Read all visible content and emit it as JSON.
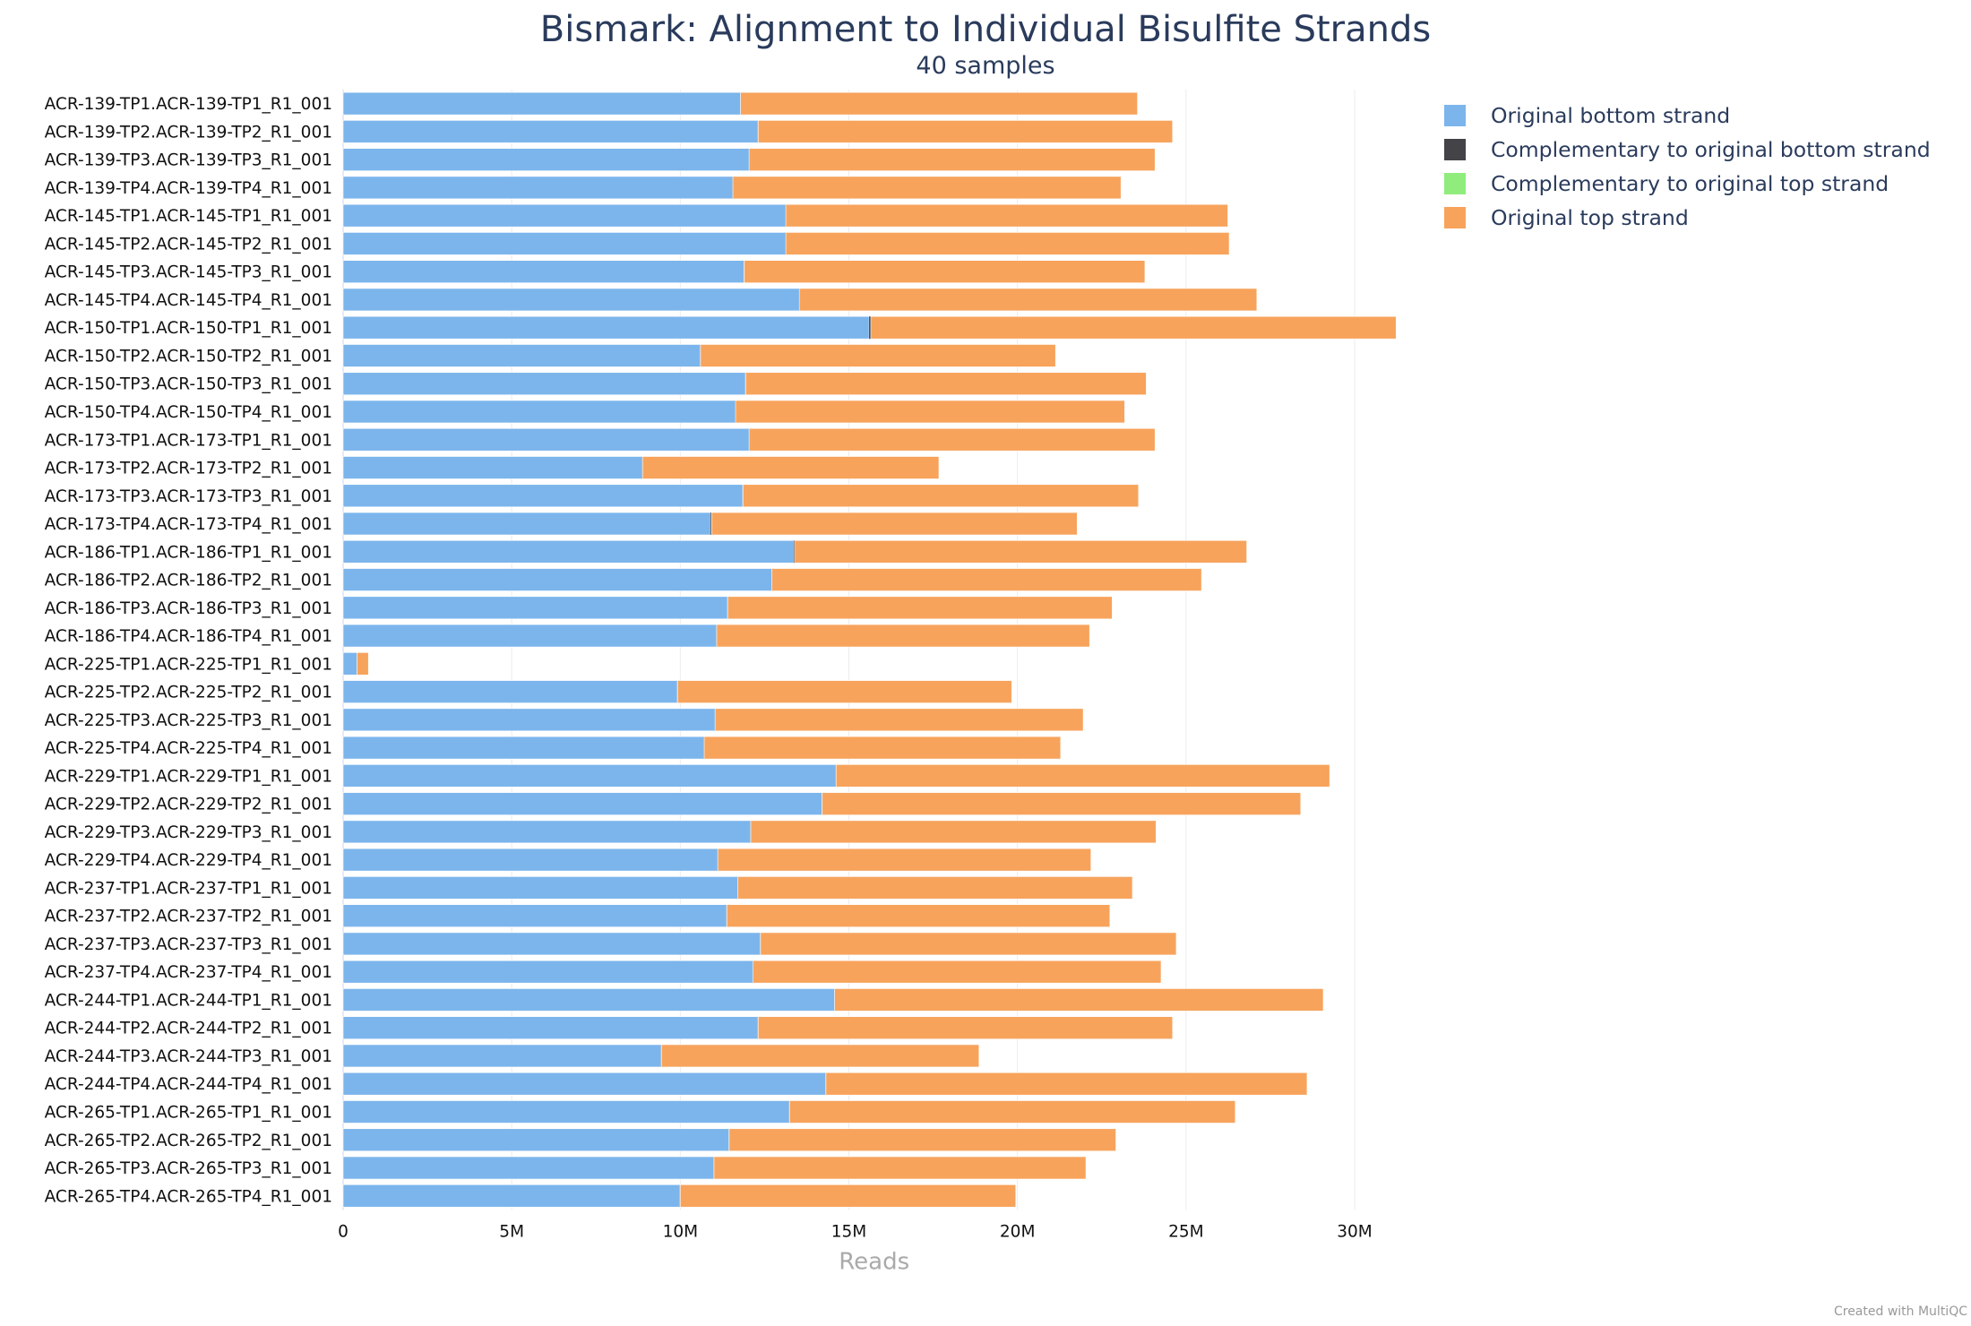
{
  "chart_data": {
    "type": "bar",
    "orientation": "horizontal",
    "stacked": true,
    "title": "Bismark: Alignment to Individual Bisulfite Strands",
    "subtitle": "40 samples",
    "xlabel": "Reads",
    "ylabel": "",
    "xlim": [
      0,
      31500000.0
    ],
    "x_ticks": [
      "0",
      "5M",
      "10M",
      "15M",
      "20M",
      "25M",
      "30M"
    ],
    "x_tick_values": [
      0,
      5000000.0,
      10000000.0,
      15000000.0,
      20000000.0,
      25000000.0,
      30000000.0
    ],
    "grid": true,
    "legend_position": "right",
    "categories": [
      "ACR-139-TP1.ACR-139-TP1_R1_001",
      "ACR-139-TP2.ACR-139-TP2_R1_001",
      "ACR-139-TP3.ACR-139-TP3_R1_001",
      "ACR-139-TP4.ACR-139-TP4_R1_001",
      "ACR-145-TP1.ACR-145-TP1_R1_001",
      "ACR-145-TP2.ACR-145-TP2_R1_001",
      "ACR-145-TP3.ACR-145-TP3_R1_001",
      "ACR-145-TP4.ACR-145-TP4_R1_001",
      "ACR-150-TP1.ACR-150-TP1_R1_001",
      "ACR-150-TP2.ACR-150-TP2_R1_001",
      "ACR-150-TP3.ACR-150-TP3_R1_001",
      "ACR-150-TP4.ACR-150-TP4_R1_001",
      "ACR-173-TP1.ACR-173-TP1_R1_001",
      "ACR-173-TP2.ACR-173-TP2_R1_001",
      "ACR-173-TP3.ACR-173-TP3_R1_001",
      "ACR-173-TP4.ACR-173-TP4_R1_001",
      "ACR-186-TP1.ACR-186-TP1_R1_001",
      "ACR-186-TP2.ACR-186-TP2_R1_001",
      "ACR-186-TP3.ACR-186-TP3_R1_001",
      "ACR-186-TP4.ACR-186-TP4_R1_001",
      "ACR-225-TP1.ACR-225-TP1_R1_001",
      "ACR-225-TP2.ACR-225-TP2_R1_001",
      "ACR-225-TP3.ACR-225-TP3_R1_001",
      "ACR-225-TP4.ACR-225-TP4_R1_001",
      "ACR-229-TP1.ACR-229-TP1_R1_001",
      "ACR-229-TP2.ACR-229-TP2_R1_001",
      "ACR-229-TP3.ACR-229-TP3_R1_001",
      "ACR-229-TP4.ACR-229-TP4_R1_001",
      "ACR-237-TP1.ACR-237-TP1_R1_001",
      "ACR-237-TP2.ACR-237-TP2_R1_001",
      "ACR-237-TP3.ACR-237-TP3_R1_001",
      "ACR-237-TP4.ACR-237-TP4_R1_001",
      "ACR-244-TP1.ACR-244-TP1_R1_001",
      "ACR-244-TP2.ACR-244-TP2_R1_001",
      "ACR-244-TP3.ACR-244-TP3_R1_001",
      "ACR-244-TP4.ACR-244-TP4_R1_001",
      "ACR-265-TP1.ACR-265-TP1_R1_001",
      "ACR-265-TP2.ACR-265-TP2_R1_001",
      "ACR-265-TP3.ACR-265-TP3_R1_001",
      "ACR-265-TP4.ACR-265-TP4_R1_001"
    ],
    "series": [
      {
        "name": "Original bottom strand",
        "color": "#7cb5ec",
        "values": [
          11780000.0,
          12300000.0,
          12040000.0,
          11550000.0,
          13120000.0,
          13120000.0,
          11890000.0,
          13530000.0,
          15600000.0,
          10590000.0,
          11930000.0,
          11630000.0,
          12040000.0,
          8870000.0,
          11850000.0,
          10900000.0,
          13360000.0,
          12710000.0,
          11400000.0,
          11070000.0,
          410000.0,
          9910000.0,
          11030000.0,
          10700000.0,
          14610000.0,
          14200000.0,
          12080000.0,
          11110000.0,
          11700000.0,
          11370000.0,
          12370000.0,
          12150000.0,
          14570000.0,
          12300000.0,
          9430000.0,
          14310000.0,
          13230000.0,
          11440000.0,
          10990000.0,
          9990000.0
        ]
      },
      {
        "name": "Complementary to original bottom strand",
        "color": "#434348",
        "values": [
          10000.0,
          10000.0,
          10000.0,
          10000.0,
          10000.0,
          10000.0,
          10000.0,
          10000.0,
          50000.0,
          10000.0,
          10000.0,
          10000.0,
          10000.0,
          10000.0,
          10000.0,
          30000.0,
          30000.0,
          10000.0,
          10000.0,
          10000.0,
          0,
          10000.0,
          10000.0,
          10000.0,
          10000.0,
          10000.0,
          10000.0,
          10000.0,
          10000.0,
          10000.0,
          10000.0,
          10000.0,
          10000.0,
          10000.0,
          10000.0,
          10000.0,
          10000.0,
          10000.0,
          10000.0,
          10000.0
        ]
      },
      {
        "name": "Complementary to original top strand",
        "color": "#90ed7d",
        "values": [
          0,
          0,
          0,
          0,
          0,
          0,
          0,
          0,
          0,
          0,
          0,
          0,
          0,
          0,
          0,
          0,
          0,
          0,
          0,
          0,
          0,
          0,
          0,
          0,
          0,
          0,
          0,
          0,
          0,
          0,
          0,
          0,
          0,
          0,
          0,
          0,
          0,
          0,
          0,
          0
        ]
      },
      {
        "name": "Original top strand",
        "color": "#f7a35c",
        "values": [
          11770000.0,
          12290000.0,
          12030000.0,
          11510000.0,
          13110000.0,
          13150000.0,
          11880000.0,
          13560000.0,
          15580000.0,
          10530000.0,
          11880000.0,
          11540000.0,
          12030000.0,
          8790000.0,
          11730000.0,
          10840000.0,
          13410000.0,
          12740000.0,
          11400000.0,
          11060000.0,
          340000.0,
          9910000.0,
          10910000.0,
          10570000.0,
          14640000.0,
          14190000.0,
          12020000.0,
          11060000.0,
          11700000.0,
          11360000.0,
          12330000.0,
          12100000.0,
          14490000.0,
          12290000.0,
          9420000.0,
          14270000.0,
          13220000.0,
          11470000.0,
          11030000.0,
          9950000.0
        ]
      }
    ]
  },
  "footer": {
    "credit": "Created with MultiQC"
  }
}
